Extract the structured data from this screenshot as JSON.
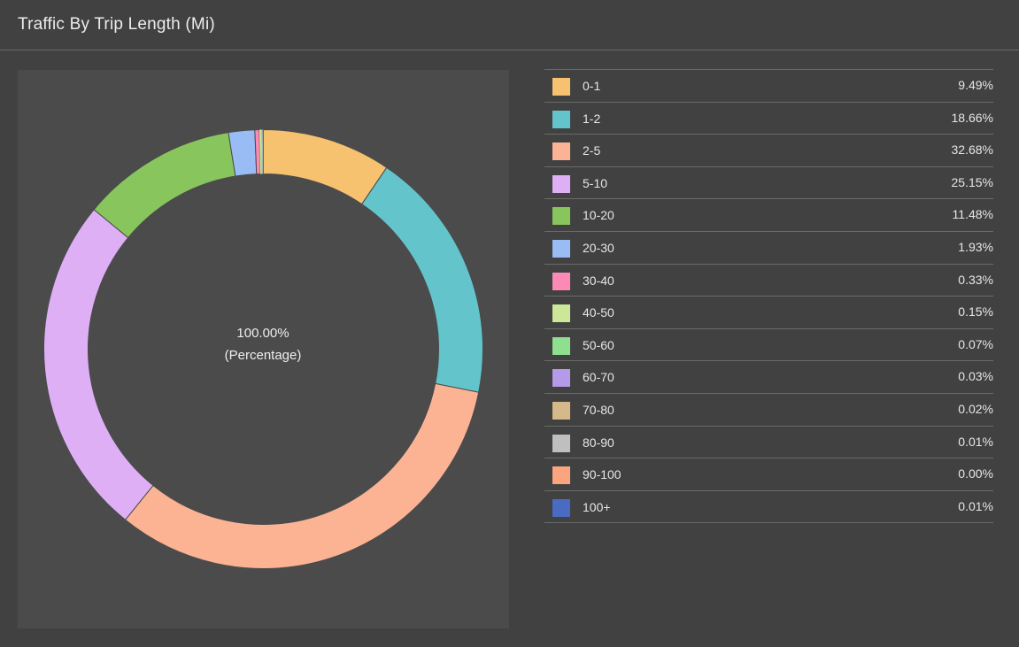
{
  "header": {
    "title": "Traffic By Trip Length (Mi)"
  },
  "chart_data": {
    "type": "pie",
    "donut": true,
    "center_value": "100.00%",
    "center_label": "(Percentage)",
    "categories": [
      "0-1",
      "1-2",
      "2-5",
      "5-10",
      "10-20",
      "20-30",
      "30-40",
      "40-50",
      "50-60",
      "60-70",
      "70-80",
      "80-90",
      "90-100",
      "100+"
    ],
    "values": [
      9.49,
      18.66,
      32.68,
      25.15,
      11.48,
      1.93,
      0.33,
      0.15,
      0.07,
      0.03,
      0.02,
      0.01,
      0.0,
      0.01
    ],
    "value_labels": [
      "9.49%",
      "18.66%",
      "32.68%",
      "25.15%",
      "11.48%",
      "1.93%",
      "0.33%",
      "0.15%",
      "0.07%",
      "0.03%",
      "0.02%",
      "0.01%",
      "0.00%",
      "0.01%"
    ],
    "colors": [
      "#f6c270",
      "#63c4cc",
      "#fcb394",
      "#deaff5",
      "#88c65d",
      "#98bcf3",
      "#fc89b6",
      "#cde799",
      "#8fdf8f",
      "#b49ae8",
      "#d6b98a",
      "#bfbfbf",
      "#fba57f",
      "#4a6bc4"
    ],
    "legend_placement": "right"
  }
}
